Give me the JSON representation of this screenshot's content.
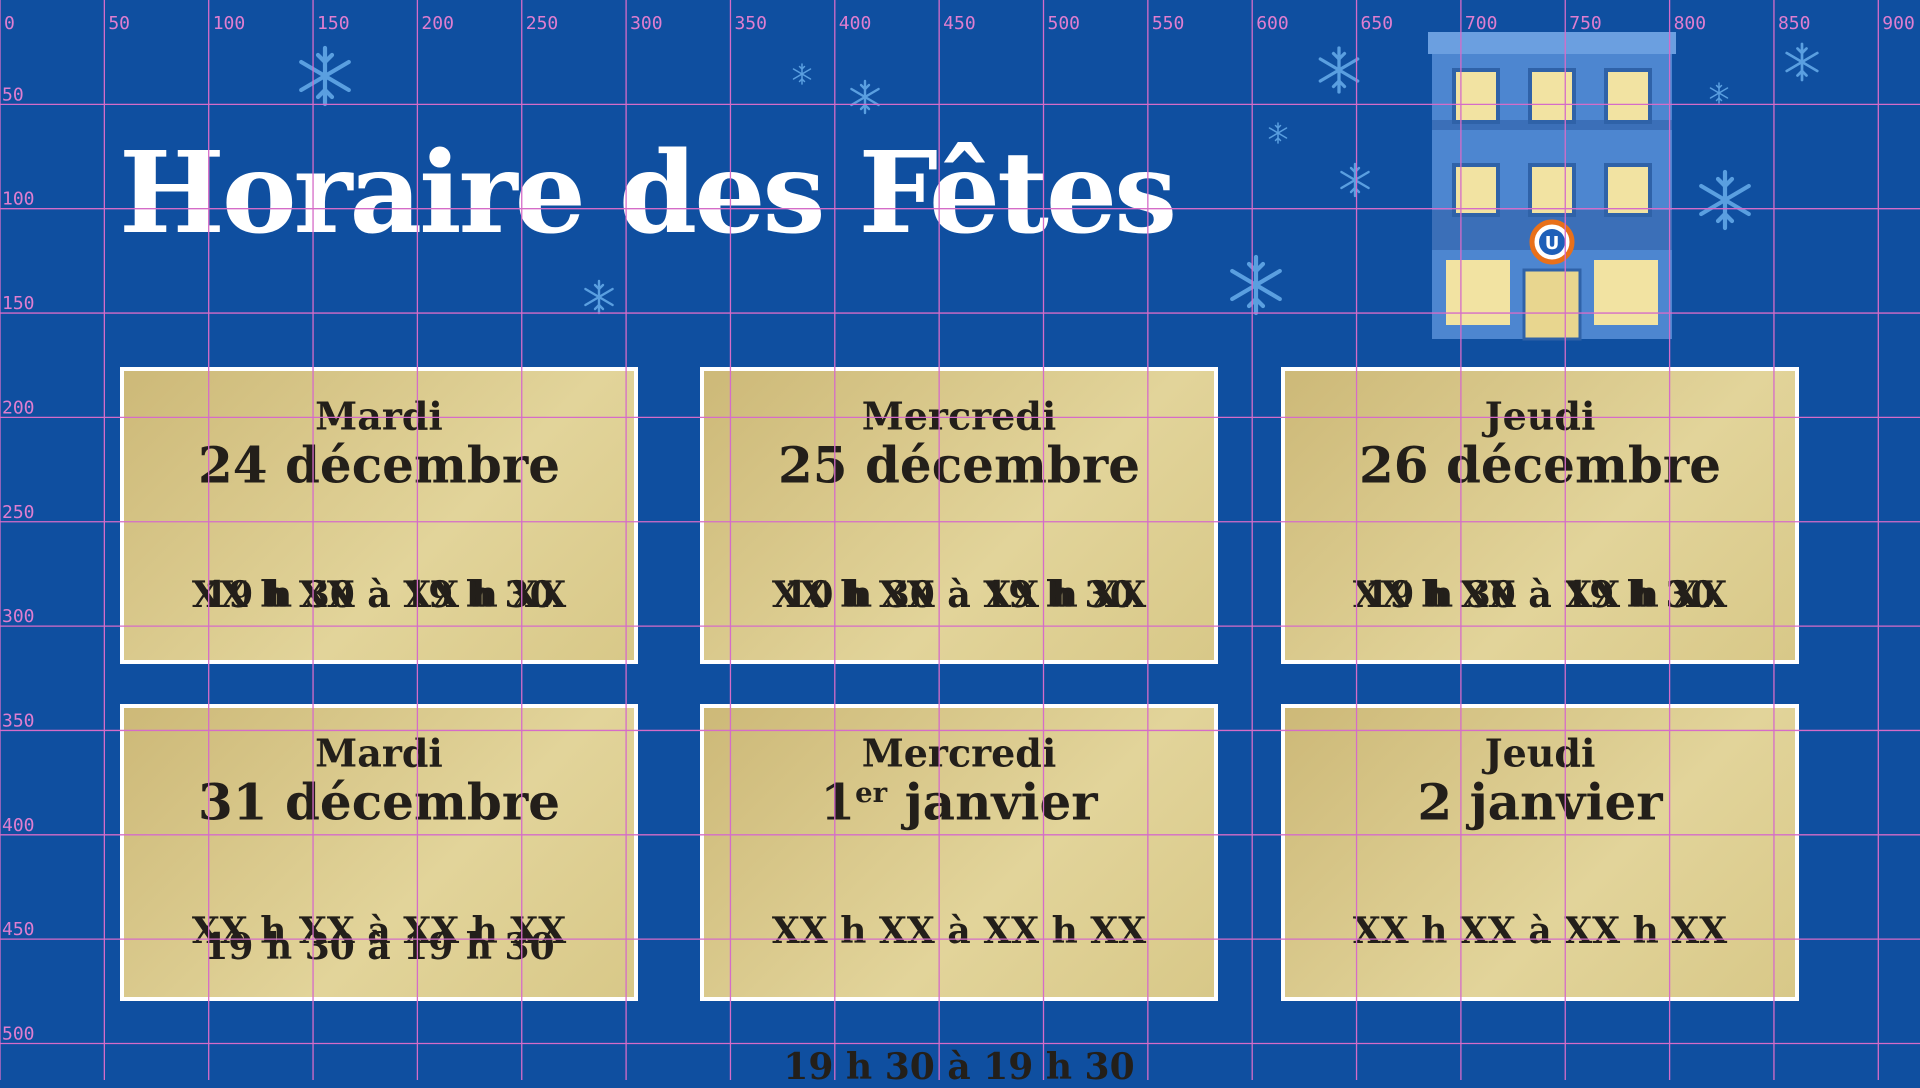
{
  "header": {
    "title": "Horaire des Fêtes"
  },
  "cards": [
    {
      "day": "Mardi",
      "date": "24 décembre",
      "hours": [
        "19 h 30 à 19 h 30",
        "XX h XX à XX h XX"
      ]
    },
    {
      "day": "Mercredi",
      "date": "25 décembre",
      "hours": [
        "10 h 30 à 19 h 30",
        "XX h XX à XX h XX"
      ]
    },
    {
      "day": "Jeudi",
      "date": "26 décembre",
      "hours": [
        "19 h 30 à 19 h 30",
        "XX h XX à XX h XX"
      ]
    },
    {
      "day": "Mardi",
      "date": "31 décembre",
      "hours": [
        "XX h XX à XX h XX",
        "19 h 30 à 19 h 30"
      ]
    },
    {
      "day": "Mercredi",
      "date": "1",
      "date_sup": "er",
      "date_rest": "janvier",
      "hours": [
        "XX h XX à XX h XX",
        "19 h 30 à 19 h 30"
      ]
    },
    {
      "day": "Jeudi",
      "date": "2 janvier",
      "hours": [
        "XX h XX à XX h XX"
      ]
    }
  ],
  "grid": {
    "x_labels": [
      0,
      50,
      100,
      150,
      200,
      250,
      300,
      350,
      400,
      450,
      500,
      550,
      600,
      650,
      700,
      750,
      800,
      850,
      900
    ],
    "y_labels": [
      50,
      100,
      150,
      200,
      250,
      300,
      350,
      400,
      450,
      500
    ]
  },
  "logo": {
    "label": "U"
  }
}
